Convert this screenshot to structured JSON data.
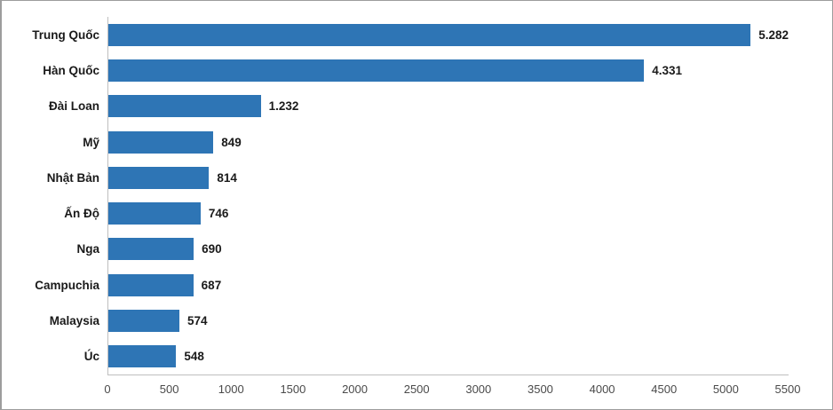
{
  "colors": {
    "bar": "#2e75b5",
    "axis_line": "#bfbfbf",
    "figure_border": "#9d9d9d",
    "category_label": "#1a1a1a",
    "tick_label": "#4a4a4a",
    "background": "#ffffff"
  },
  "chart_data": {
    "type": "bar",
    "orientation": "horizontal",
    "title": "",
    "xlabel": "",
    "ylabel": "",
    "grid": false,
    "legend": "none",
    "xlim": [
      0,
      5500
    ],
    "categories": [
      "Trung Quốc",
      "Hàn Quốc",
      "Đài Loan",
      "Mỹ",
      "Nhật Bản",
      "Ấn Độ",
      "Nga",
      "Campuchia",
      "Malaysia",
      "Úc"
    ],
    "values": [
      5282,
      4331,
      1232,
      849,
      814,
      746,
      690,
      687,
      574,
      548
    ],
    "value_labels": [
      "5.282",
      "4.331",
      "1.232",
      "849",
      "814",
      "746",
      "690",
      "687",
      "574",
      "548"
    ],
    "x_tick_values": [
      0,
      500,
      1000,
      1500,
      2000,
      2500,
      3000,
      3500,
      4000,
      4500,
      5000,
      5500
    ],
    "x_tick_labels": [
      "0",
      "500",
      "1000",
      "1500",
      "2000",
      "2500",
      "3000",
      "3500",
      "4000",
      "4500",
      "5000",
      "5500"
    ]
  }
}
